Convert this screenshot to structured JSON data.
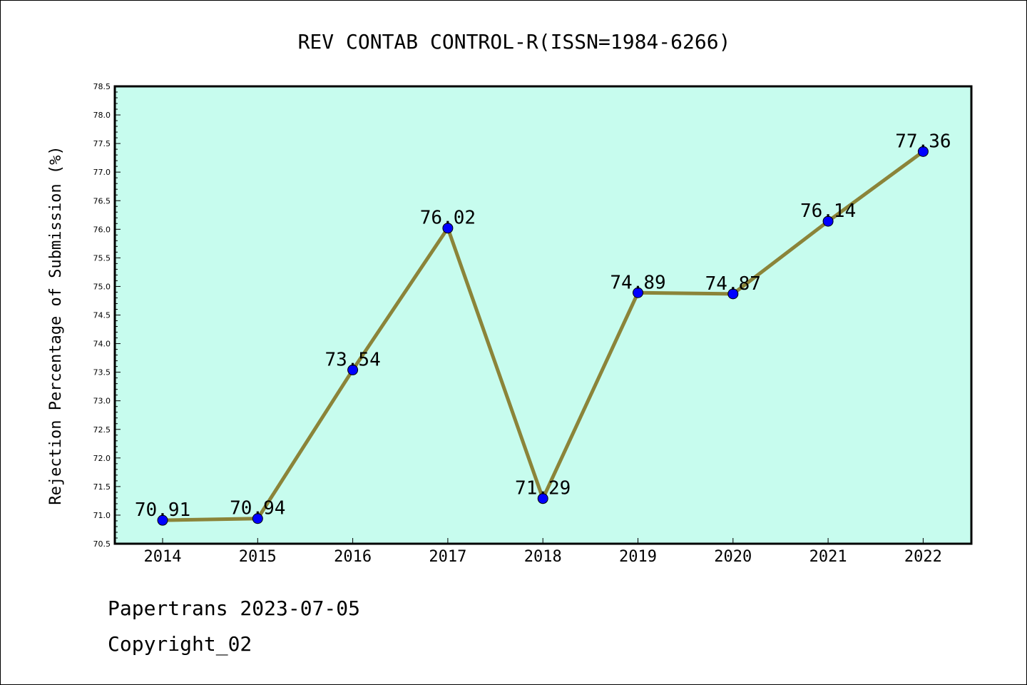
{
  "chart_data": {
    "type": "line",
    "title": "REV CONTAB CONTROL-R(ISSN=1984-6266)",
    "xlabel": "",
    "ylabel": "Rejection Percentage of Submission (%)",
    "categories": [
      "2014",
      "2015",
      "2016",
      "2017",
      "2018",
      "2019",
      "2020",
      "2021",
      "2022"
    ],
    "values": [
      70.91,
      70.94,
      73.54,
      76.02,
      71.29,
      74.89,
      74.87,
      76.14,
      77.36
    ],
    "data_labels": [
      "70.91",
      "70.94",
      "73.54",
      "76.02",
      "71.29",
      "74.89",
      "74.87",
      "76.14",
      "77.36"
    ],
    "ylim": [
      70.5,
      78.5
    ],
    "ytick_step": 0.5,
    "yticks": [
      "70.5",
      "71.0",
      "71.5",
      "72.0",
      "72.5",
      "73.0",
      "73.5",
      "74.0",
      "74.5",
      "75.0",
      "75.5",
      "76.0",
      "76.5",
      "77.0",
      "77.5",
      "78.0",
      "78.5"
    ],
    "grid": false,
    "legend": "none",
    "colors": {
      "plot_background": "#c7fcee",
      "line": "#8b8439",
      "marker": "#0000ff"
    }
  },
  "footer": {
    "line1": "Papertrans 2023-07-05",
    "line2": "Copyright_02"
  }
}
